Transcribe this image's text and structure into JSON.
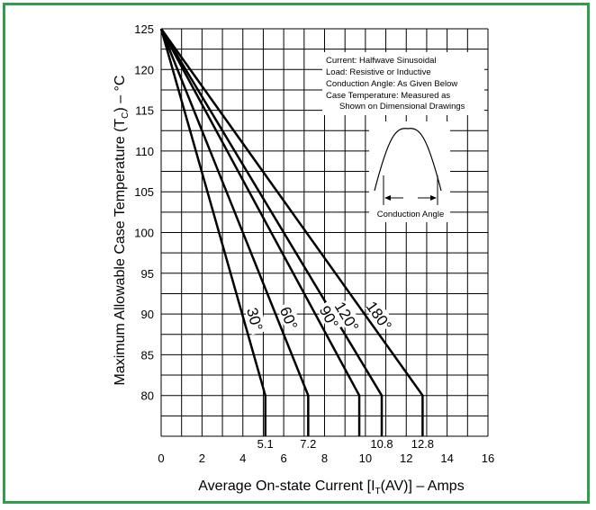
{
  "chart_data": {
    "type": "line",
    "xlabel_parts": [
      "Average On-state Current [I",
      "T",
      "(AV)] – Amps"
    ],
    "ylabel_parts": [
      "Maximum Allowable Case Temperature (T",
      "C",
      ") – °C"
    ],
    "xlim": [
      0,
      16
    ],
    "ylim": [
      75,
      125
    ],
    "x_ticks": [
      "0",
      "2",
      "4",
      "6",
      "8",
      "10",
      "12",
      "14",
      "16"
    ],
    "y_ticks": [
      "80",
      "85",
      "90",
      "95",
      "100",
      "105",
      "110",
      "115",
      "120",
      "125"
    ],
    "series": [
      {
        "name": "30°",
        "points": [
          [
            0,
            125
          ],
          [
            5.1,
            80
          ],
          [
            5.1,
            75
          ]
        ]
      },
      {
        "name": "60°",
        "points": [
          [
            0,
            125
          ],
          [
            7.2,
            80
          ],
          [
            7.2,
            75
          ]
        ]
      },
      {
        "name": "90°",
        "points": [
          [
            0,
            125
          ],
          [
            9.7,
            80
          ],
          [
            9.7,
            75
          ]
        ]
      },
      {
        "name": "120°",
        "points": [
          [
            0,
            125
          ],
          [
            10.8,
            80
          ],
          [
            10.8,
            75
          ]
        ]
      },
      {
        "name": "180°",
        "points": [
          [
            0,
            125
          ],
          [
            12.8,
            80
          ],
          [
            12.8,
            75
          ]
        ]
      }
    ],
    "annotations": [
      "5.1",
      "7.2",
      "10.8",
      "12.8"
    ],
    "notes": [
      "Current: Halfwave Sinusoidal",
      "Load: Resistive or Inductive",
      "Conduction Angle: As Given Below",
      "Case Temperature: Measured as",
      "Shown on Dimensional Drawings"
    ],
    "inset_label": "Conduction Angle",
    "grid": true
  }
}
